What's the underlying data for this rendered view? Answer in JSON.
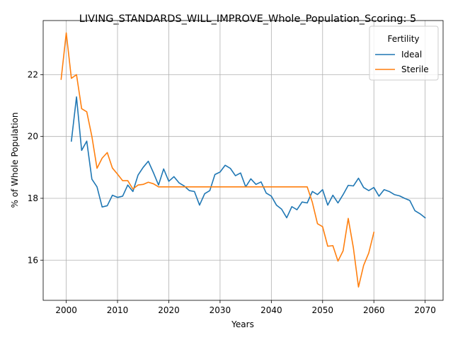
{
  "chart_data": {
    "type": "line",
    "title": "LIVING_STANDARDS_WILL_IMPROVE_Whole_Population_Scoring: 5",
    "xlabel": "Years",
    "ylabel": "% of Whole Population",
    "xlim": [
      1995.5,
      2073.5
    ],
    "ylim": [
      14.7,
      23.75
    ],
    "xticks": [
      2000,
      2010,
      2020,
      2030,
      2040,
      2050,
      2060,
      2070
    ],
    "yticks": [
      16,
      18,
      20,
      22
    ],
    "grid": true,
    "legend": {
      "title": "Fertility",
      "position": "top-right"
    },
    "series": [
      {
        "name": "Ideal",
        "color": "#1f77b4",
        "x": [
          2001,
          2002,
          2003,
          2004,
          2005,
          2006,
          2007,
          2008,
          2009,
          2010,
          2011,
          2012,
          2013,
          2014,
          2015,
          2016,
          2017,
          2018,
          2019,
          2020,
          2021,
          2022,
          2023,
          2024,
          2025,
          2026,
          2027,
          2028,
          2029,
          2030,
          2031,
          2032,
          2033,
          2034,
          2035,
          2036,
          2037,
          2038,
          2039,
          2040,
          2041,
          2042,
          2043,
          2044,
          2045,
          2046,
          2047,
          2048,
          2049,
          2050,
          2051,
          2052,
          2053,
          2054,
          2055,
          2056,
          2057,
          2058,
          2059,
          2060,
          2061,
          2062,
          2063,
          2064,
          2065,
          2066,
          2067,
          2068,
          2069,
          2070
        ],
        "values": [
          19.85,
          21.28,
          19.55,
          19.85,
          18.62,
          18.37,
          17.72,
          17.76,
          18.1,
          18.03,
          18.07,
          18.43,
          18.22,
          18.75,
          19.0,
          19.2,
          18.83,
          18.43,
          18.95,
          18.55,
          18.7,
          18.5,
          18.4,
          18.25,
          18.22,
          17.78,
          18.15,
          18.25,
          18.77,
          18.85,
          19.07,
          18.97,
          18.73,
          18.82,
          18.37,
          18.63,
          18.45,
          18.53,
          18.17,
          18.07,
          17.78,
          17.65,
          17.37,
          17.73,
          17.63,
          17.88,
          17.85,
          18.22,
          18.12,
          18.28,
          17.78,
          18.1,
          17.85,
          18.12,
          18.42,
          18.4,
          18.65,
          18.35,
          18.25,
          18.35,
          18.07,
          18.28,
          18.22,
          18.12,
          18.08,
          18.0,
          17.93,
          17.6,
          17.5,
          17.37
        ]
      },
      {
        "name": "Sterile",
        "color": "#ff7f0e",
        "x": [
          1999,
          2000,
          2001,
          2002,
          2003,
          2004,
          2005,
          2006,
          2007,
          2008,
          2009,
          2010,
          2011,
          2012,
          2013,
          2014,
          2015,
          2016,
          2017,
          2018,
          2019,
          2020,
          2021,
          2022,
          2023,
          2024,
          2025,
          2026,
          2027,
          2028,
          2029,
          2030,
          2031,
          2032,
          2033,
          2034,
          2035,
          2036,
          2037,
          2038,
          2039,
          2040,
          2041,
          2042,
          2043,
          2044,
          2045,
          2046,
          2047,
          2048,
          2049,
          2050,
          2051,
          2052,
          2053,
          2054,
          2055,
          2056,
          2057,
          2058,
          2059,
          2060
        ],
        "values": [
          21.85,
          23.35,
          21.88,
          22.0,
          20.9,
          20.8,
          20.0,
          18.97,
          19.3,
          19.48,
          18.98,
          18.78,
          18.57,
          18.57,
          18.3,
          18.43,
          18.45,
          18.52,
          18.47,
          18.37,
          18.37,
          18.37,
          18.37,
          18.37,
          18.37,
          18.37,
          18.37,
          18.37,
          18.37,
          18.37,
          18.37,
          18.37,
          18.37,
          18.37,
          18.37,
          18.37,
          18.37,
          18.37,
          18.37,
          18.37,
          18.37,
          18.37,
          18.37,
          18.37,
          18.37,
          18.37,
          18.37,
          18.37,
          18.37,
          17.87,
          17.18,
          17.08,
          16.45,
          16.47,
          15.97,
          16.3,
          17.35,
          16.4,
          15.13,
          15.83,
          16.23,
          16.9
        ]
      }
    ]
  }
}
